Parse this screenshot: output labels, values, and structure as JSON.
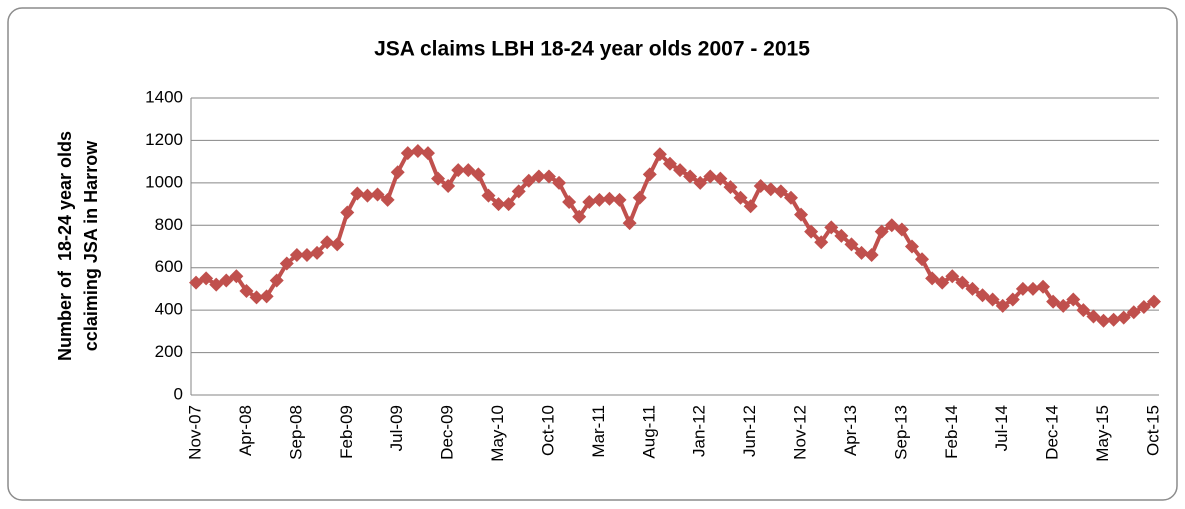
{
  "chart_data": {
    "type": "line",
    "title": "JSA claims LBH 18-24 year olds 2007 - 2015",
    "ylabel": [
      "Number of  18-24 year olds",
      "cclaiming JSA in Harrow"
    ],
    "categories": [
      "Nov-07",
      null,
      null,
      null,
      null,
      "Apr-08",
      null,
      null,
      null,
      null,
      "Sep-08",
      null,
      null,
      null,
      null,
      "Feb-09",
      null,
      null,
      null,
      null,
      "Jul-09",
      null,
      null,
      null,
      null,
      "Dec-09",
      null,
      null,
      null,
      null,
      "May-10",
      null,
      null,
      null,
      null,
      "Oct-10",
      null,
      null,
      null,
      null,
      "Mar-11",
      null,
      null,
      null,
      null,
      "Aug-11",
      null,
      null,
      null,
      null,
      "Jan-12",
      null,
      null,
      null,
      null,
      "Jun-12",
      null,
      null,
      null,
      null,
      "Nov-12",
      null,
      null,
      null,
      null,
      "Apr-13",
      null,
      null,
      null,
      null,
      "Sep-13",
      null,
      null,
      null,
      null,
      "Feb-14",
      null,
      null,
      null,
      null,
      "Jul-14",
      null,
      null,
      null,
      null,
      "Dec-14",
      null,
      null,
      null,
      null,
      "May-15",
      null,
      null,
      null,
      null,
      "Oct-15"
    ],
    "series": [
      {
        "name": "JSA claims",
        "color": "#c0504d",
        "values": [
          530,
          550,
          520,
          540,
          560,
          490,
          460,
          465,
          540,
          620,
          660,
          660,
          670,
          720,
          710,
          860,
          950,
          940,
          945,
          920,
          1050,
          1140,
          1150,
          1140,
          1020,
          985,
          1060,
          1060,
          1040,
          940,
          900,
          900,
          960,
          1010,
          1030,
          1030,
          1000,
          910,
          840,
          910,
          920,
          925,
          920,
          810,
          930,
          1040,
          1135,
          1090,
          1060,
          1030,
          1000,
          1030,
          1020,
          980,
          930,
          890,
          985,
          970,
          960,
          930,
          850,
          770,
          720,
          790,
          750,
          710,
          670,
          660,
          770,
          800,
          780,
          700,
          640,
          550,
          530,
          560,
          530,
          500,
          470,
          450,
          420,
          450,
          500,
          500,
          510,
          440,
          420,
          450,
          400,
          370,
          350,
          355,
          365,
          390,
          415,
          440
        ]
      }
    ],
    "ylim": [
      0,
      1400
    ],
    "yticks": [
      0,
      200,
      400,
      600,
      800,
      1000,
      1200,
      1400
    ],
    "grid": true
  }
}
